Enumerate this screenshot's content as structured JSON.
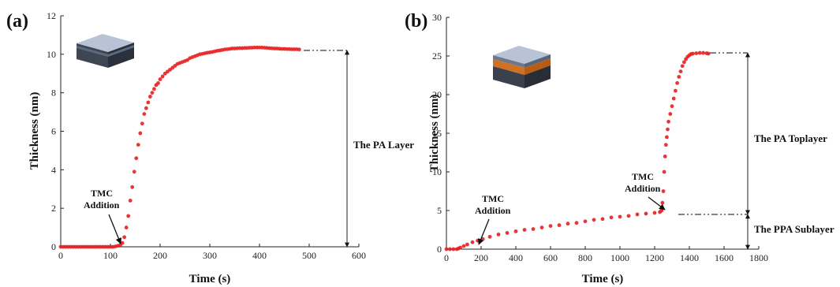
{
  "chart_data": [
    {
      "type": "scatter",
      "panel_label": "(a)",
      "xlabel": "Time (s)",
      "ylabel": "Thickness (nm)",
      "xlim": [
        0,
        600
      ],
      "ylim": [
        0,
        12
      ],
      "xticks": [
        "0",
        "100",
        "200",
        "300",
        "400",
        "500",
        "600"
      ],
      "yticks": [
        "0",
        "2",
        "4",
        "6",
        "8",
        "10",
        "12"
      ],
      "marker_color": "#e62020",
      "series": [
        {
          "x": [
            0,
            5,
            10,
            15,
            20,
            25,
            30,
            35,
            40,
            45,
            50,
            55,
            60,
            65,
            70,
            75,
            80,
            85,
            90,
            95,
            100,
            105,
            110,
            115,
            120,
            124,
            128,
            132,
            136,
            140,
            144,
            148,
            152,
            156,
            160,
            164,
            168,
            172,
            176,
            180,
            184,
            188,
            192,
            196,
            200,
            205,
            210,
            215,
            220,
            225,
            230,
            235,
            240,
            245,
            250,
            255,
            260,
            265,
            270,
            275,
            280,
            285,
            290,
            295,
            300,
            305,
            310,
            315,
            320,
            325,
            330,
            335,
            340,
            345,
            350,
            355,
            360,
            365,
            370,
            375,
            380,
            385,
            390,
            395,
            400,
            405,
            410,
            415,
            420,
            425,
            430,
            435,
            440,
            445,
            450,
            455,
            460,
            465,
            470,
            475,
            480
          ],
          "y": [
            0,
            0,
            0,
            0,
            0,
            0,
            0,
            0,
            0,
            0,
            0,
            0,
            0,
            0,
            0,
            0,
            0,
            0,
            0,
            0,
            0,
            0,
            0.02,
            0.05,
            0.1,
            0.2,
            0.5,
            1.0,
            1.6,
            2.4,
            3.1,
            3.9,
            4.6,
            5.3,
            5.9,
            6.4,
            6.9,
            7.2,
            7.5,
            7.8,
            8.0,
            8.2,
            8.4,
            8.5,
            8.7,
            8.85,
            9.0,
            9.1,
            9.2,
            9.3,
            9.4,
            9.5,
            9.55,
            9.6,
            9.65,
            9.7,
            9.8,
            9.85,
            9.9,
            9.95,
            10.0,
            10.02,
            10.05,
            10.08,
            10.1,
            10.12,
            10.15,
            10.18,
            10.2,
            10.22,
            10.25,
            10.26,
            10.28,
            10.3,
            10.3,
            10.31,
            10.32,
            10.32,
            10.33,
            10.33,
            10.34,
            10.34,
            10.35,
            10.35,
            10.35,
            10.35,
            10.34,
            10.33,
            10.32,
            10.31,
            10.3,
            10.3,
            10.29,
            10.28,
            10.28,
            10.27,
            10.27,
            10.26,
            10.26,
            10.26,
            10.25
          ]
        }
      ],
      "annotations": [
        {
          "text": [
            "TMC",
            "Addition"
          ],
          "x": 120,
          "y": 0
        },
        {
          "text": "The PA Layer",
          "from_y": 0,
          "to_y": 10.2
        }
      ]
    },
    {
      "type": "scatter",
      "panel_label": "(b)",
      "xlabel": "Time (s)",
      "ylabel": "Thickness (nm)",
      "xlim": [
        0,
        1800
      ],
      "ylim": [
        0,
        30
      ],
      "xticks": [
        "0",
        "200",
        "400",
        "600",
        "800",
        "1000",
        "1200",
        "1400",
        "1600",
        "1800"
      ],
      "yticks": [
        "0",
        "5",
        "10",
        "15",
        "20",
        "25",
        "30"
      ],
      "marker_color": "#e62020",
      "series": [
        {
          "x": [
            0,
            20,
            40,
            60,
            70,
            80,
            100,
            120,
            150,
            180,
            210,
            250,
            300,
            350,
            400,
            450,
            500,
            550,
            600,
            650,
            700,
            750,
            800,
            850,
            900,
            950,
            1000,
            1050,
            1100,
            1150,
            1200,
            1230,
            1240,
            1245,
            1250,
            1255,
            1260,
            1265,
            1270,
            1275,
            1280,
            1290,
            1300,
            1310,
            1320,
            1330,
            1340,
            1350,
            1360,
            1370,
            1380,
            1390,
            1400,
            1410,
            1420,
            1440,
            1460,
            1480,
            1500,
            1510
          ],
          "y": [
            0,
            0,
            0,
            0,
            0.1,
            0.2,
            0.4,
            0.6,
            0.9,
            1.1,
            1.3,
            1.6,
            1.9,
            2.1,
            2.3,
            2.5,
            2.6,
            2.8,
            3.0,
            3.1,
            3.3,
            3.4,
            3.6,
            3.8,
            3.9,
            4.1,
            4.2,
            4.3,
            4.5,
            4.6,
            4.7,
            4.8,
            5.0,
            6.0,
            7.5,
            10.0,
            12.0,
            13.5,
            14.5,
            15.5,
            16.5,
            17.5,
            18.5,
            19.5,
            20.5,
            21.5,
            22.3,
            23.0,
            23.7,
            24.2,
            24.6,
            24.9,
            25.1,
            25.25,
            25.3,
            25.35,
            25.4,
            25.4,
            25.35,
            25.3
          ]
        }
      ],
      "annotations": [
        {
          "text": [
            "TMC",
            "Addition"
          ],
          "x": 70,
          "y": 0
        },
        {
          "text": [
            "TMC",
            "Addition"
          ],
          "x": 1180,
          "y": 4.6
        },
        {
          "text": "The PA Toplayer",
          "from_y": 4.5,
          "to_y": 25.4
        },
        {
          "text": "The PPA Sublayer",
          "from_y": 0,
          "to_y": 4.5
        }
      ]
    }
  ]
}
